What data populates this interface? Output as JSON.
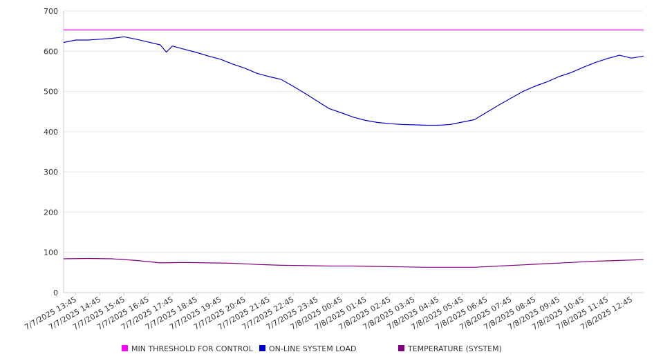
{
  "chart_data": {
    "type": "line",
    "title": "",
    "xlabel": "",
    "ylabel": "",
    "ylim": [
      0,
      700
    ],
    "y_ticks": [
      0,
      100,
      200,
      300,
      400,
      500,
      600,
      700
    ],
    "grid": "horizontal",
    "legend_placement": "bottom",
    "x_tick_labels": [
      "7/7/2025 13:45",
      "7/7/2025 14:45",
      "7/7/2025 15:45",
      "7/7/2025 16:45",
      "7/7/2025 17:45",
      "7/7/2025 18:45",
      "7/7/2025 19:45",
      "7/7/2025 20:45",
      "7/7/2025 21:45",
      "7/7/2025 22:45",
      "7/7/2025 23:45",
      "7/8/2025 00:45",
      "7/8/2025 01:45",
      "7/8/2025 02:45",
      "7/8/2025 03:45",
      "7/8/2025 04:45",
      "7/8/2025 05:45",
      "7/8/2025 06:45",
      "7/8/2025 07:45",
      "7/8/2025 08:45",
      "7/8/2025 09:45",
      "7/8/2025 10:45",
      "7/8/2025 11:45",
      "7/8/2025 12:45"
    ],
    "x_range": [
      "7/7/2025 13:15",
      "7/8/2025 13:15"
    ],
    "series": [
      {
        "name": "MIN THRESHOLD FOR CONTROL",
        "color": "#ff00ff",
        "x": [
          "7/7/2025 13:15",
          "7/8/2025 13:15"
        ],
        "values": [
          653,
          653
        ]
      },
      {
        "name": "ON-LINE SYSTEM LOAD",
        "color": "#0000cc",
        "x": [
          "7/7/2025 13:15",
          "7/7/2025 13:45",
          "7/7/2025 14:15",
          "7/7/2025 14:45",
          "7/7/2025 15:15",
          "7/7/2025 15:45",
          "7/7/2025 16:15",
          "7/7/2025 16:45",
          "7/7/2025 17:15",
          "7/7/2025 17:30",
          "7/7/2025 17:45",
          "7/7/2025 18:15",
          "7/7/2025 18:45",
          "7/7/2025 19:15",
          "7/7/2025 19:45",
          "7/7/2025 20:15",
          "7/7/2025 20:45",
          "7/7/2025 21:15",
          "7/7/2025 21:45",
          "7/7/2025 22:15",
          "7/7/2025 22:45",
          "7/7/2025 23:15",
          "7/7/2025 23:45",
          "7/8/2025 00:15",
          "7/8/2025 00:45",
          "7/8/2025 01:15",
          "7/8/2025 01:45",
          "7/8/2025 02:15",
          "7/8/2025 02:45",
          "7/8/2025 03:15",
          "7/8/2025 03:45",
          "7/8/2025 04:15",
          "7/8/2025 04:45",
          "7/8/2025 05:15",
          "7/8/2025 05:45",
          "7/8/2025 06:15",
          "7/8/2025 06:45",
          "7/8/2025 07:15",
          "7/8/2025 07:45",
          "7/8/2025 08:15",
          "7/8/2025 08:45",
          "7/8/2025 09:15",
          "7/8/2025 09:45",
          "7/8/2025 10:15",
          "7/8/2025 10:45",
          "7/8/2025 11:15",
          "7/8/2025 11:45",
          "7/8/2025 12:15",
          "7/8/2025 12:45",
          "7/8/2025 13:15"
        ],
        "values": [
          622,
          628,
          628,
          630,
          632,
          636,
          630,
          623,
          616,
          598,
          613,
          605,
          597,
          588,
          580,
          568,
          558,
          545,
          537,
          530,
          513,
          495,
          476,
          457,
          447,
          436,
          428,
          423,
          420,
          418,
          417,
          416,
          416,
          418,
          424,
          430,
          448,
          466,
          483,
          500,
          513,
          524,
          537,
          547,
          560,
          572,
          582,
          590,
          583,
          588
        ]
      },
      {
        "name": "TEMPERATURE (SYSTEM)",
        "color": "#800080",
        "x": [
          "7/7/2025 13:15",
          "7/7/2025 14:15",
          "7/7/2025 15:15",
          "7/7/2025 16:15",
          "7/7/2025 17:15",
          "7/7/2025 18:15",
          "7/7/2025 19:15",
          "7/7/2025 20:15",
          "7/7/2025 21:15",
          "7/7/2025 22:15",
          "7/7/2025 23:15",
          "7/8/2025 00:15",
          "7/8/2025 01:15",
          "7/8/2025 02:15",
          "7/8/2025 03:15",
          "7/8/2025 04:15",
          "7/8/2025 05:15",
          "7/8/2025 06:15",
          "7/8/2025 07:15",
          "7/8/2025 08:15",
          "7/8/2025 09:15",
          "7/8/2025 10:15",
          "7/8/2025 11:15",
          "7/8/2025 12:15",
          "7/8/2025 13:15"
        ],
        "values": [
          84,
          85,
          84,
          80,
          74,
          75,
          74,
          73,
          70,
          68,
          67,
          66,
          66,
          65,
          64,
          63,
          63,
          63,
          66,
          69,
          72,
          75,
          78,
          80,
          82
        ]
      }
    ]
  }
}
